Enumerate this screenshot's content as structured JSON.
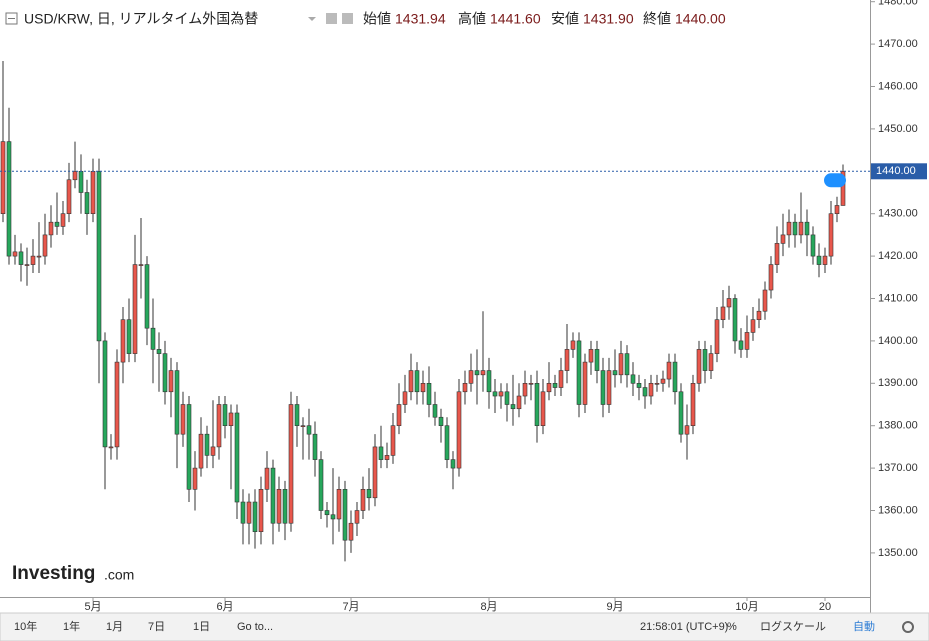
{
  "header": {
    "title": "USD/KRW, 日, リアルタイム外国為替",
    "open_label": "始値",
    "open": "1431.94",
    "high_label": "高値",
    "high": "1441.60",
    "low_label": "安値",
    "low": "1431.90",
    "close_label": "終値",
    "close": "1440.00"
  },
  "logo": {
    "brand": "Investing",
    "suffix": ".com"
  },
  "toolbar": {
    "ranges": [
      "10年",
      "1年",
      "1月",
      "7日",
      "1日"
    ],
    "goto": "Go to...",
    "time": "21:58:01 (UTC+9)",
    "percent": "%",
    "log": "ログスケール",
    "auto": "自動"
  },
  "chart_data": {
    "type": "candlestick",
    "up_color": "#e8574c",
    "down_color": "#27a75c",
    "last_price": {
      "value": 1440,
      "label": "1440.00"
    },
    "ylim": [
      1339.6,
      1480.4
    ],
    "yticks": [
      {
        "value": 1350,
        "label": "1350.00"
      },
      {
        "value": 1360,
        "label": "1360.00"
      },
      {
        "value": 1370,
        "label": "1370.00"
      },
      {
        "value": 1380,
        "label": "1380.00"
      },
      {
        "value": 1390,
        "label": "1390.00"
      },
      {
        "value": 1400,
        "label": "1400.00"
      },
      {
        "value": 1410,
        "label": "1410.00"
      },
      {
        "value": 1420,
        "label": "1420.00"
      },
      {
        "value": 1430,
        "label": "1430.00"
      },
      {
        "value": 1440,
        "label": "1440.00"
      },
      {
        "value": 1450,
        "label": "1450.00"
      },
      {
        "value": 1460,
        "label": "1460.00"
      },
      {
        "value": 1470,
        "label": "1470.00"
      },
      {
        "value": 1480,
        "label": "1480.00"
      }
    ],
    "categories": [
      null,
      null,
      null,
      null,
      null,
      null,
      null,
      null,
      null,
      null,
      null,
      null,
      null,
      null,
      null,
      "5月",
      null,
      null,
      null,
      null,
      null,
      null,
      null,
      null,
      null,
      null,
      null,
      null,
      null,
      null,
      null,
      null,
      null,
      null,
      null,
      null,
      null,
      "6月",
      null,
      null,
      null,
      null,
      null,
      null,
      null,
      null,
      null,
      null,
      null,
      null,
      null,
      null,
      null,
      null,
      null,
      null,
      null,
      null,
      "7月",
      null,
      null,
      null,
      null,
      null,
      null,
      null,
      null,
      null,
      null,
      null,
      null,
      null,
      null,
      null,
      null,
      null,
      null,
      null,
      null,
      null,
      null,
      "8月",
      null,
      null,
      null,
      null,
      null,
      null,
      null,
      null,
      null,
      null,
      null,
      null,
      null,
      null,
      null,
      null,
      null,
      null,
      null,
      null,
      "9月",
      null,
      null,
      null,
      null,
      null,
      null,
      null,
      null,
      null,
      null,
      null,
      null,
      null,
      null,
      null,
      null,
      null,
      null,
      null,
      null,
      null,
      "10月",
      null,
      null,
      null,
      null,
      null,
      null,
      null,
      null,
      null,
      null,
      null,
      null,
      "20",
      null,
      null,
      null
    ],
    "open": [
      1430,
      1447,
      1420,
      1421,
      1418,
      1418,
      1420,
      1420,
      1425,
      1428,
      1427,
      1430,
      1438,
      1440,
      1435,
      1430,
      1440,
      1400,
      1375,
      1375,
      1395,
      1405,
      1397,
      1418,
      1418,
      1403,
      1398,
      1397,
      1388,
      1393,
      1378,
      1385,
      1365,
      1370,
      1378,
      1373,
      1375,
      1385,
      1380,
      1383,
      1362,
      1357,
      1362,
      1355,
      1365,
      1370,
      1357,
      1365,
      1357,
      1385,
      1380,
      1380,
      1378,
      1372,
      1360,
      1359,
      1358,
      1365,
      1353,
      1357,
      1360,
      1365,
      1363,
      1375,
      1372,
      1373,
      1380,
      1385,
      1388,
      1393,
      1388,
      1390,
      1385,
      1382,
      1380,
      1372,
      1370,
      1388,
      1390,
      1393,
      1392,
      1393,
      1388,
      1387,
      1388,
      1385,
      1384,
      1387,
      1390,
      1390,
      1380,
      1388,
      1390,
      1389,
      1393,
      1398,
      1400,
      1385,
      1395,
      1398,
      1393,
      1385,
      1393,
      1392,
      1397,
      1392,
      1390,
      1389,
      1387,
      1390,
      1390,
      1391,
      1395,
      1388,
      1378,
      1380,
      1390,
      1398,
      1393,
      1397,
      1405,
      1408,
      1410,
      1400,
      1398,
      1402,
      1405,
      1407,
      1412,
      1418,
      1423,
      1425,
      1428,
      1425,
      1428,
      1425,
      1420,
      1418,
      1420,
      1430,
      1431.94
    ],
    "high": [
      1466,
      1455,
      1425,
      1423,
      1422,
      1424,
      1428,
      1430,
      1432,
      1435,
      1433,
      1442,
      1447,
      1444,
      1438,
      1443,
      1443,
      1402,
      1378,
      1398,
      1408,
      1410,
      1425,
      1429,
      1420,
      1410,
      1402,
      1400,
      1396,
      1395,
      1388,
      1387,
      1374,
      1382,
      1380,
      1386,
      1387,
      1387,
      1385,
      1385,
      1365,
      1364,
      1365,
      1368,
      1374,
      1372,
      1368,
      1367,
      1388,
      1387,
      1382,
      1384,
      1381,
      1374,
      1362,
      1370,
      1368,
      1367,
      1360,
      1362,
      1368,
      1370,
      1378,
      1380,
      1376,
      1383,
      1390,
      1392,
      1397,
      1395,
      1393,
      1394,
      1388,
      1384,
      1382,
      1374,
      1391,
      1393,
      1397,
      1398,
      1407,
      1396,
      1391,
      1390,
      1390,
      1392,
      1390,
      1393,
      1392,
      1393,
      1391,
      1395,
      1392,
      1396,
      1404,
      1402,
      1402,
      1397,
      1400,
      1400,
      1396,
      1396,
      1398,
      1400,
      1399,
      1395,
      1392,
      1391,
      1392,
      1392,
      1393,
      1397,
      1397,
      1390,
      1385,
      1392,
      1400,
      1400,
      1399,
      1408,
      1412,
      1413,
      1411,
      1403,
      1406,
      1408,
      1410,
      1414,
      1420,
      1427,
      1430,
      1431,
      1430,
      1435,
      1431,
      1427,
      1423,
      1422,
      1433,
      1434,
      1441.6
    ],
    "low": [
      1428,
      1418,
      1418,
      1414,
      1413,
      1416,
      1416,
      1418,
      1422,
      1425,
      1425,
      1428,
      1436,
      1430,
      1425,
      1428,
      1390,
      1365,
      1372,
      1372,
      1390,
      1395,
      1395,
      1410,
      1399,
      1390,
      1388,
      1385,
      1382,
      1370,
      1375,
      1362,
      1360,
      1368,
      1370,
      1370,
      1372,
      1377,
      1365,
      1358,
      1352,
      1352,
      1351,
      1352,
      1362,
      1352,
      1355,
      1353,
      1355,
      1375,
      1372,
      1372,
      1368,
      1358,
      1356,
      1352,
      1355,
      1348,
      1350,
      1354,
      1358,
      1360,
      1361,
      1370,
      1370,
      1371,
      1378,
      1383,
      1386,
      1385,
      1385,
      1382,
      1380,
      1376,
      1370,
      1365,
      1368,
      1385,
      1388,
      1385,
      1388,
      1384,
      1383,
      1384,
      1381,
      1380,
      1382,
      1385,
      1386,
      1376,
      1378,
      1386,
      1387,
      1387,
      1390,
      1396,
      1382,
      1383,
      1392,
      1390,
      1382,
      1383,
      1389,
      1390,
      1389,
      1387,
      1386,
      1384,
      1385,
      1388,
      1388,
      1389,
      1385,
      1376,
      1372,
      1378,
      1388,
      1390,
      1391,
      1395,
      1403,
      1405,
      1397,
      1396,
      1396,
      1400,
      1403,
      1405,
      1410,
      1416,
      1420,
      1422,
      1422,
      1423,
      1420,
      1418,
      1415,
      1416,
      1418,
      1428,
      1431.9
    ],
    "close": [
      1447,
      1420,
      1421,
      1418,
      1418,
      1420,
      1420,
      1425,
      1428,
      1427,
      1430,
      1438,
      1440,
      1435,
      1430,
      1440,
      1400,
      1375,
      1375,
      1395,
      1405,
      1397,
      1418,
      1418,
      1403,
      1398,
      1397,
      1388,
      1393,
      1378,
      1385,
      1365,
      1370,
      1378,
      1373,
      1375,
      1385,
      1380,
      1383,
      1362,
      1357,
      1362,
      1355,
      1365,
      1370,
      1357,
      1365,
      1357,
      1385,
      1380,
      1380,
      1378,
      1372,
      1360,
      1359,
      1358,
      1365,
      1353,
      1357,
      1360,
      1365,
      1363,
      1375,
      1372,
      1373,
      1380,
      1385,
      1388,
      1393,
      1388,
      1390,
      1385,
      1382,
      1380,
      1372,
      1370,
      1388,
      1390,
      1393,
      1392,
      1393,
      1388,
      1387,
      1388,
      1385,
      1384,
      1387,
      1390,
      1390,
      1380,
      1388,
      1390,
      1389,
      1393,
      1398,
      1400,
      1385,
      1395,
      1398,
      1393,
      1385,
      1393,
      1392,
      1397,
      1392,
      1390,
      1389,
      1387,
      1390,
      1390,
      1391,
      1395,
      1388,
      1378,
      1380,
      1390,
      1398,
      1393,
      1397,
      1405,
      1408,
      1410,
      1400,
      1398,
      1402,
      1405,
      1407,
      1412,
      1418,
      1423,
      1425,
      1428,
      1425,
      1428,
      1425,
      1420,
      1418,
      1420,
      1430,
      1431.94,
      1440
    ]
  }
}
